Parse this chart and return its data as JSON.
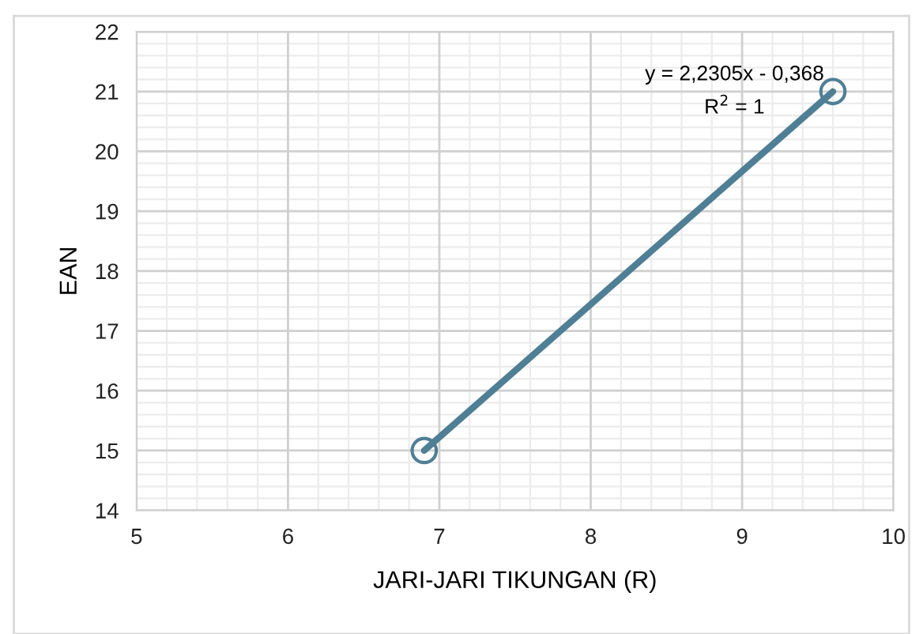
{
  "chart_data": {
    "type": "line",
    "marker": "circle",
    "xlabel": "JARI-JARI TIKUNGAN (R)",
    "ylabel": "EAN",
    "series": [
      {
        "color": "#4f7f95",
        "x": [
          6.9,
          9.6
        ],
        "values": [
          15,
          21
        ]
      }
    ],
    "annotations": [
      "y = 2,2305x - 0,368",
      "R$^{2}$ = 1"
    ],
    "xlim": [
      5,
      10
    ],
    "xticks": [
      5,
      6,
      7,
      8,
      9,
      10
    ],
    "ylim": [
      14,
      22
    ],
    "yticks": [
      14,
      15,
      16,
      17,
      18,
      19,
      20,
      21,
      22
    ],
    "grid": true,
    "legend": false
  }
}
